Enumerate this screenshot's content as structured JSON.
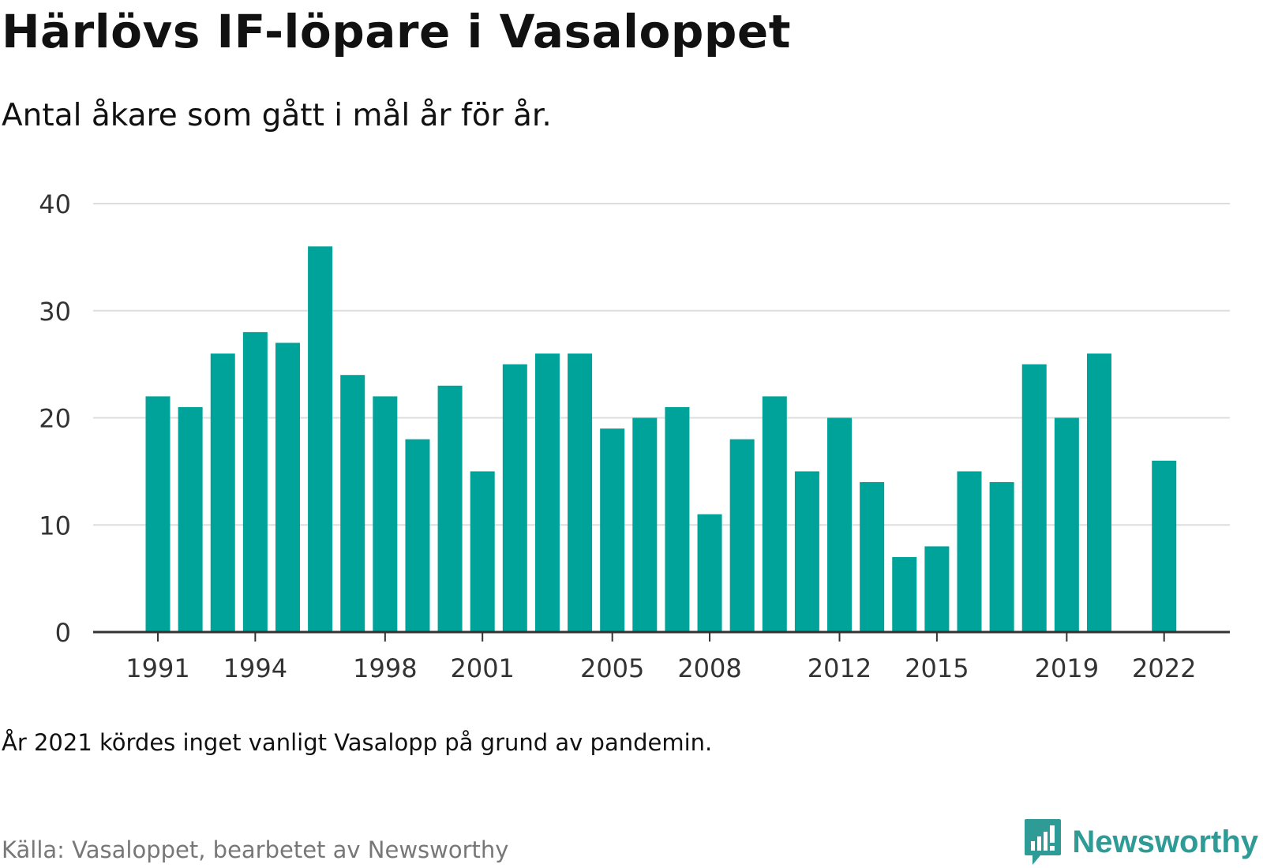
{
  "header": {
    "title": "Härlövs IF-löpare i Vasaloppet",
    "subtitle": "Antal åkare som gått i mål år för år."
  },
  "footer": {
    "note": "År 2021 kördes inget vanligt Vasalopp på grund av pandemin.",
    "source": "Källa: Vasaloppet, bearbetet av Newsworthy",
    "brand": "Newsworthy",
    "brand_icon": "bar-chart-speech-bubble-icon"
  },
  "colors": {
    "bar": "#00A39A",
    "grid": "#dddddd",
    "axis": "#333333",
    "brand": "#2f9b97"
  },
  "chart_data": {
    "type": "bar",
    "title": "Härlövs IF-löpare i Vasaloppet",
    "subtitle": "Antal åkare som gått i mål år för år.",
    "xlabel": "",
    "ylabel": "",
    "ylim": [
      0,
      40
    ],
    "yticks": [
      0,
      10,
      20,
      30,
      40
    ],
    "xtick_labels": [
      "1991",
      "1994",
      "1998",
      "2001",
      "2005",
      "2008",
      "2012",
      "2015",
      "2019",
      "2022"
    ],
    "grid": "horizontal",
    "categories": [
      "1991",
      "1992",
      "1993",
      "1994",
      "1995",
      "1996",
      "1997",
      "1998",
      "1999",
      "2000",
      "2001",
      "2002",
      "2003",
      "2004",
      "2005",
      "2006",
      "2007",
      "2008",
      "2009",
      "2010",
      "2011",
      "2012",
      "2013",
      "2014",
      "2015",
      "2016",
      "2017",
      "2018",
      "2019",
      "2020",
      "2021",
      "2022"
    ],
    "values": [
      22,
      21,
      26,
      28,
      27,
      36,
      24,
      22,
      18,
      23,
      15,
      25,
      26,
      26,
      19,
      20,
      21,
      11,
      18,
      22,
      15,
      20,
      14,
      7,
      8,
      15,
      14,
      25,
      20,
      26,
      null,
      16
    ]
  }
}
